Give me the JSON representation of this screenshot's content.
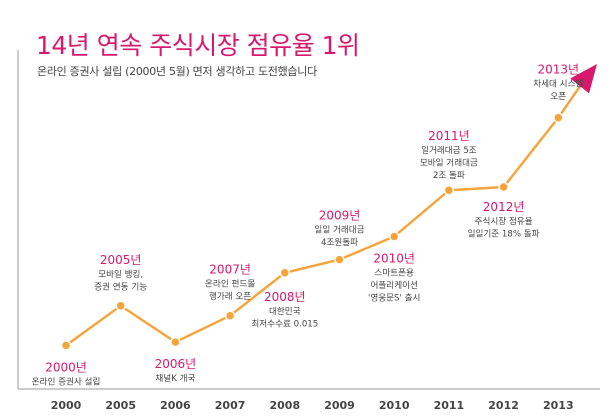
{
  "header": {
    "title": "14년 연속 주식시장 점유율 1위",
    "subtitle": "온라인 증권사 설립 (2000년 5월) 면저 생각하고 도전했습니다"
  },
  "colors": {
    "accent": "#d7196e",
    "line": "#f6a33a",
    "axis": "#999999",
    "text": "#444444"
  },
  "chart_data": {
    "type": "line",
    "categories": [
      "2000",
      "2005",
      "2006",
      "2007",
      "2008",
      "2009",
      "2010",
      "2011",
      "2012",
      "2013"
    ],
    "values": [
      2,
      14,
      3,
      11,
      24,
      28,
      35,
      49,
      50,
      71
    ],
    "ylim": [
      0,
      100
    ],
    "grid": false,
    "legend": "none",
    "annotations": [
      {
        "year": "2000년",
        "lines": [
          "온라인 증권사 설립"
        ]
      },
      {
        "year": "2005년",
        "lines": [
          "모바일 뱅킹,",
          "증권 연동 기능"
        ]
      },
      {
        "year": "2006년",
        "lines": [
          "채널K 개국"
        ]
      },
      {
        "year": "2007년",
        "lines": [
          "온라인 펀드몰",
          "행가래 오픈"
        ]
      },
      {
        "year": "2008년",
        "lines": [
          "대한민국",
          "최저수수료 0.015"
        ]
      },
      {
        "year": "2009년",
        "lines": [
          "일일 거래대금",
          "4조원돌파"
        ]
      },
      {
        "year": "2010년",
        "lines": [
          "스마트폰용",
          "어플리케이션",
          "'영웅문S' 출시"
        ]
      },
      {
        "year": "2011년",
        "lines": [
          "일거래대금 5조",
          "모바일 거래대금",
          "2조 돌파"
        ]
      },
      {
        "year": "2012년",
        "lines": [
          "주식시장 점유율",
          "일일기준 18% 돌파"
        ]
      },
      {
        "year": "2013년",
        "lines": [
          "차세대 시스템",
          "오픈"
        ]
      }
    ]
  }
}
